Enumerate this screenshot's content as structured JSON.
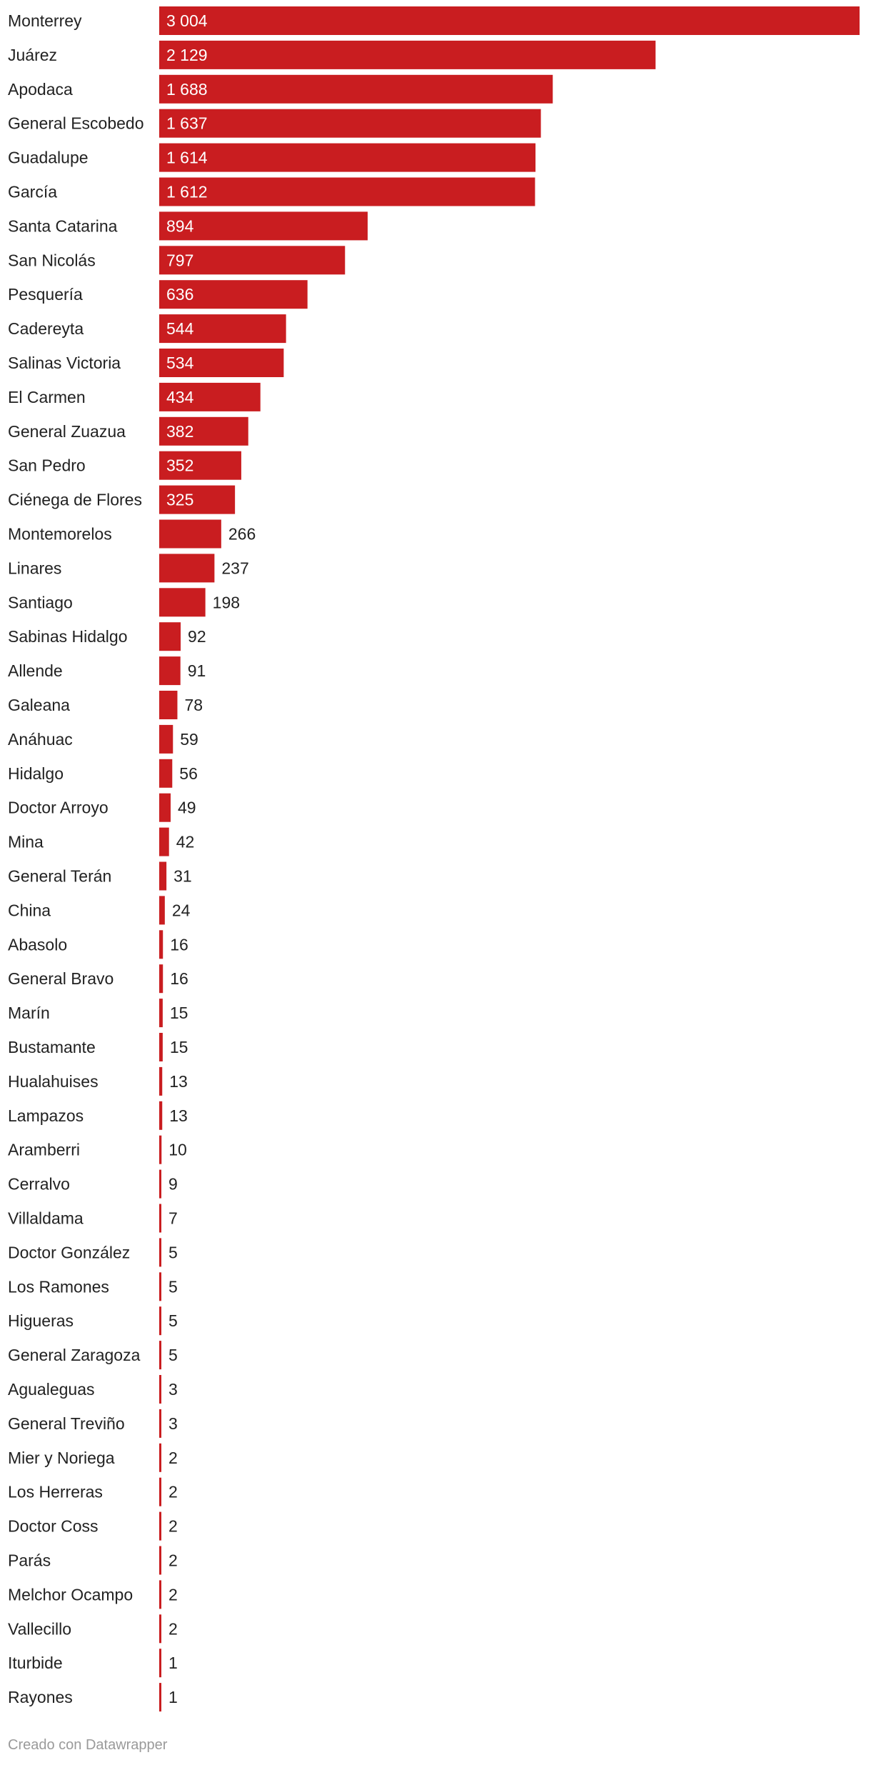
{
  "chart_data": {
    "type": "bar",
    "orientation": "horizontal",
    "categories": [
      "Monterrey",
      "Juárez",
      "Apodaca",
      "General Escobedo",
      "Guadalupe",
      "García",
      "Santa Catarina",
      "San Nicolás",
      "Pesquería",
      "Cadereyta",
      "Salinas Victoria",
      "El Carmen",
      "General Zuazua",
      "San Pedro",
      "Ciénega de Flores",
      "Montemorelos",
      "Linares",
      "Santiago",
      "Sabinas Hidalgo",
      "Allende",
      "Galeana",
      "Anáhuac",
      "Hidalgo",
      "Doctor Arroyo",
      "Mina",
      "General Terán",
      "China",
      "Abasolo",
      "General Bravo",
      "Marín",
      "Bustamante",
      "Hualahuises",
      "Lampazos",
      "Aramberri",
      "Cerralvo",
      "Villaldama",
      "Doctor González",
      "Los Ramones",
      "Higueras",
      "General Zaragoza",
      "Agualeguas",
      "General Treviño",
      "Mier y Noriega",
      "Los Herreras",
      "Doctor Coss",
      "Parás",
      "Melchor Ocampo",
      "Vallecillo",
      "Iturbide",
      "Rayones"
    ],
    "values": [
      3004,
      2129,
      1688,
      1637,
      1614,
      1612,
      894,
      797,
      636,
      544,
      534,
      434,
      382,
      352,
      325,
      266,
      237,
      198,
      92,
      91,
      78,
      59,
      56,
      49,
      42,
      31,
      24,
      16,
      16,
      15,
      15,
      13,
      13,
      10,
      9,
      7,
      5,
      5,
      5,
      5,
      3,
      3,
      2,
      2,
      2,
      2,
      2,
      2,
      1,
      1
    ],
    "value_labels": [
      "3 004",
      "2 129",
      "1 688",
      "1 637",
      "1 614",
      "1 612",
      "894",
      "797",
      "636",
      "544",
      "534",
      "434",
      "382",
      "352",
      "325",
      "266",
      "237",
      "198",
      "92",
      "91",
      "78",
      "59",
      "56",
      "49",
      "42",
      "31",
      "24",
      "16",
      "16",
      "15",
      "15",
      "13",
      "13",
      "10",
      "9",
      "7",
      "5",
      "5",
      "5",
      "5",
      "3",
      "3",
      "2",
      "2",
      "2",
      "2",
      "2",
      "2",
      "1",
      "1"
    ],
    "xlim": [
      0,
      3004
    ],
    "bar_color": "#c91d20",
    "grid": false,
    "legend": "none"
  },
  "footer": {
    "credit": "Creado con Datawrapper"
  }
}
